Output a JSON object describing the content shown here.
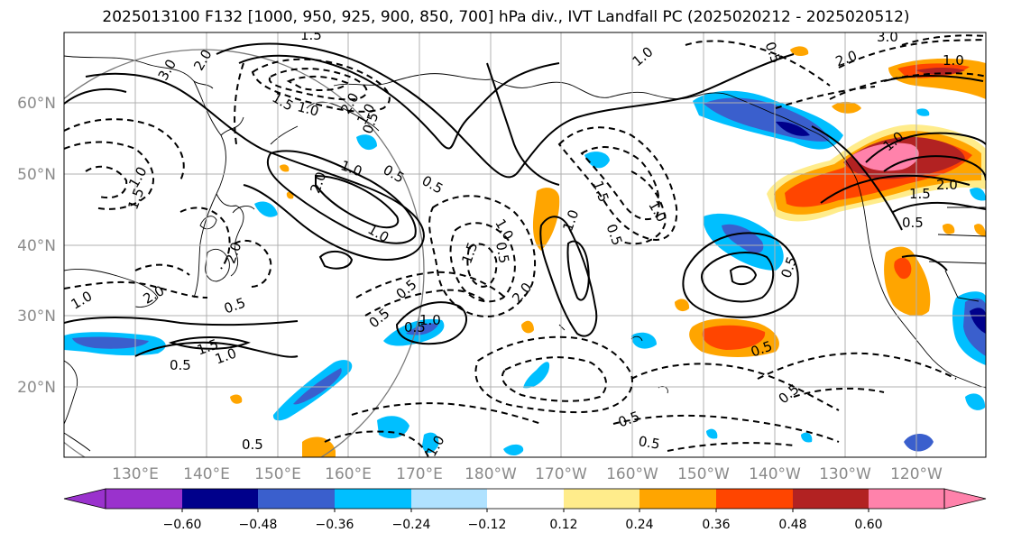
{
  "title": "2025013100 F132 [1000, 950, 925, 900, 850, 700] hPa div., IVT Landfall PC (2025020212 - 2025020512)",
  "map": {
    "lat_labels": [
      "60°N",
      "50°N",
      "40°N",
      "30°N",
      "20°N"
    ],
    "lon_labels": [
      "130°E",
      "140°E",
      "150°E",
      "160°E",
      "170°E",
      "180°W",
      "170°W",
      "160°W",
      "150°W",
      "140°W",
      "130°W",
      "120°W"
    ],
    "contour_labels": [
      "1.5",
      "3.0",
      "2.0",
      "1.5",
      "2.0",
      "1.0",
      "1.0",
      "0.5",
      "2.0",
      "0.5",
      "1.0",
      "1.0",
      "0.5",
      "1.5",
      "1.0",
      "2.0",
      "1.0",
      "2.0",
      "1.5",
      "0.5",
      "0.5",
      "0.5",
      "0.5",
      "1.0",
      "1.5",
      "1.0",
      "1.0",
      "0.5",
      "0.5",
      "2.0",
      "1.0",
      "0.5",
      "1.0",
      "0.5",
      "0.5",
      "0.5",
      "3.0",
      "2.0",
      "1.0",
      "1.0",
      "1.5",
      "2.0",
      "0.5",
      "1.0",
      "0.5",
      "0.5",
      "0.5",
      "1.5",
      "1.0",
      "0.5"
    ]
  },
  "colorbar": {
    "ticks": [
      "−0.60",
      "−0.48",
      "−0.36",
      "−0.24",
      "−0.12",
      "0.12",
      "0.24",
      "0.36",
      "0.48",
      "0.60"
    ],
    "colors": [
      "#9a32cd",
      "#00008b",
      "#3a5fcd",
      "#00bfff",
      "#b0e2ff",
      "#ffffff",
      "#ffec8b",
      "#ffa500",
      "#ff4500",
      "#b22222",
      "#ff82ab"
    ]
  }
}
